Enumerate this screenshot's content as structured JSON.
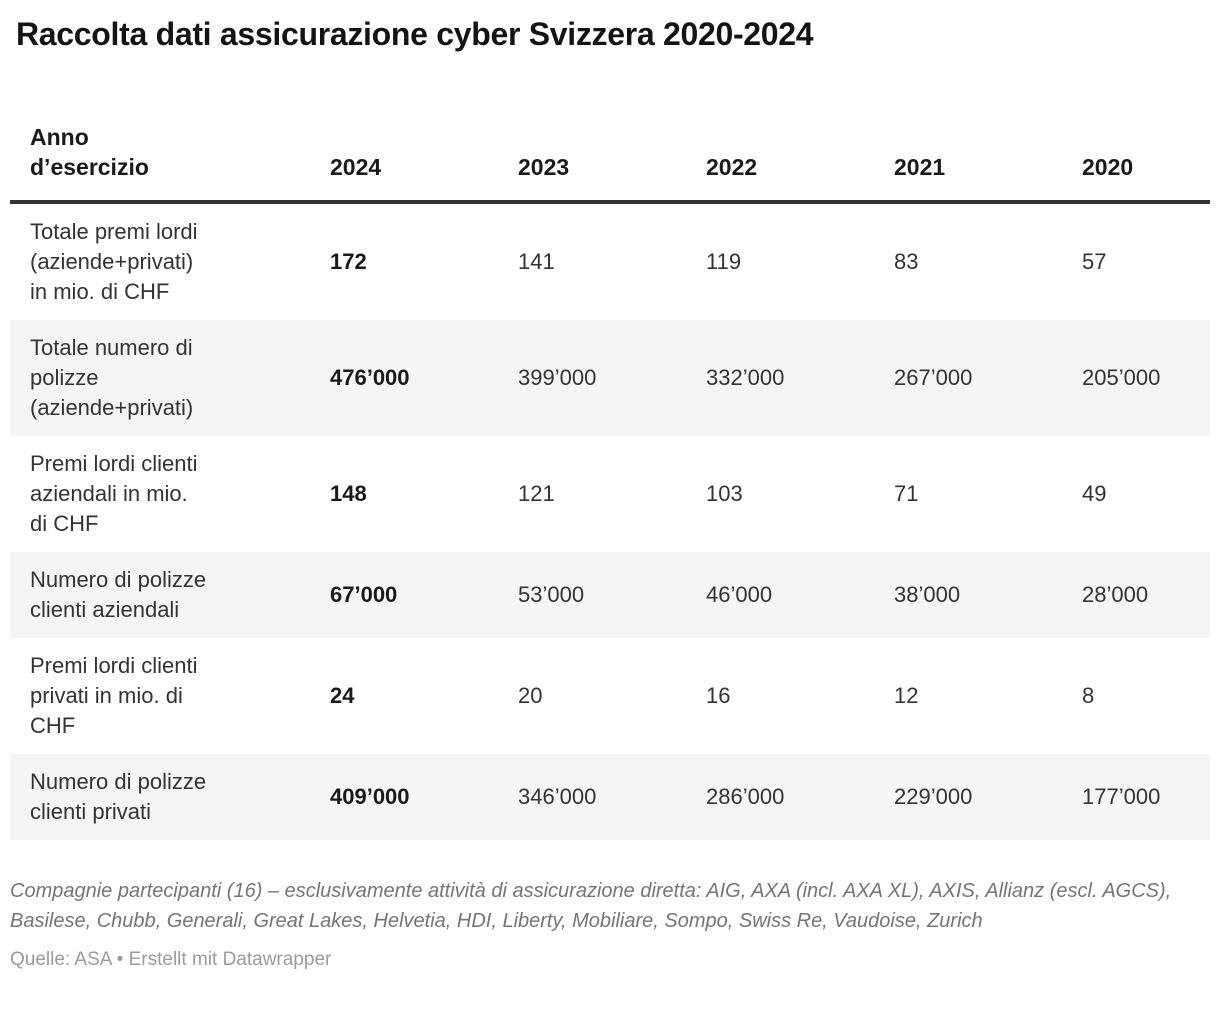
{
  "title": "Raccolta dati assicurazione cyber Svizzera 2020-2024",
  "table": {
    "header": {
      "label": "Anno\nd’esercizio",
      "years": [
        "2024",
        "2023",
        "2022",
        "2021",
        "2020"
      ]
    },
    "rows": [
      {
        "label": "Totale premi lordi\n(aziende+privati)\nin mio. di CHF",
        "values": [
          "172",
          "141",
          "119",
          "83",
          "57"
        ]
      },
      {
        "label": "Totale numero di\npolizze\n(aziende+privati)",
        "values": [
          "476’000",
          "399’000",
          "332’000",
          "267’000",
          "205’000"
        ]
      },
      {
        "label": "Premi lordi clienti\naziendali in mio.\ndi CHF",
        "values": [
          "148",
          "121",
          "103",
          "71",
          "49"
        ]
      },
      {
        "label": "Numero di polizze\nclienti aziendali",
        "values": [
          "67’000",
          "53’000",
          "46’000",
          "38’000",
          "28’000"
        ]
      },
      {
        "label": "Premi lordi clienti\nprivati in mio. di\nCHF",
        "values": [
          "24",
          "20",
          "16",
          "12",
          "8"
        ]
      },
      {
        "label": "Numero di polizze\nclienti privati",
        "values": [
          "409’000",
          "346’000",
          "286’000",
          "229’000",
          "177’000"
        ]
      }
    ]
  },
  "footer": {
    "note": "Compagnie partecipanti (16) – esclusivamente attività di assicurazione diretta: AIG, AXA (incl. AXA XL), AXIS, Allianz (escl. AGCS), Basilese, Chubb, Generali, Great Lakes, Helvetia, HDI, Liberty, Mobiliare, Sompo, Swiss Re, Vaudoise, Zurich",
    "source": "Quelle: ASA • Erstellt mit Datawrapper"
  },
  "colors": {
    "title_text": "#141414",
    "body_text": "#333333",
    "header_border": "#333333",
    "row_stripe": "#f5f5f5",
    "note_text": "#757575",
    "source_text": "#9b9b9b"
  },
  "chart_data": {
    "type": "table",
    "title": "Raccolta dati assicurazione cyber Svizzera 2020-2024",
    "row_header": "Anno d’esercizio",
    "columns": [
      "2024",
      "2023",
      "2022",
      "2021",
      "2020"
    ],
    "rows": [
      {
        "label": "Totale premi lordi (aziende+privati) in mio. di CHF",
        "values": [
          172,
          141,
          119,
          83,
          57
        ]
      },
      {
        "label": "Totale numero di polizze (aziende+privati)",
        "values": [
          476000,
          399000,
          332000,
          267000,
          205000
        ]
      },
      {
        "label": "Premi lordi clienti aziendali in mio. di CHF",
        "values": [
          148,
          121,
          103,
          71,
          49
        ]
      },
      {
        "label": "Numero di polizze clienti aziendali",
        "values": [
          67000,
          53000,
          46000,
          38000,
          28000
        ]
      },
      {
        "label": "Premi lordi clienti privati in mio. di CHF",
        "values": [
          24,
          20,
          16,
          12,
          8
        ]
      },
      {
        "label": "Numero di polizze clienti privati",
        "values": [
          409000,
          346000,
          286000,
          229000,
          177000
        ]
      }
    ],
    "notes": "Compagnie partecipanti (16) – esclusivamente attività di assicurazione diretta: AIG, AXA (incl. AXA XL), AXIS, Allianz (escl. AGCS), Basilese, Chubb, Generali, Great Lakes, Helvetia, HDI, Liberty, Mobiliare, Sompo, Swiss Re, Vaudoise, Zurich",
    "source": "Quelle: ASA",
    "highlighted_column": "2024"
  }
}
